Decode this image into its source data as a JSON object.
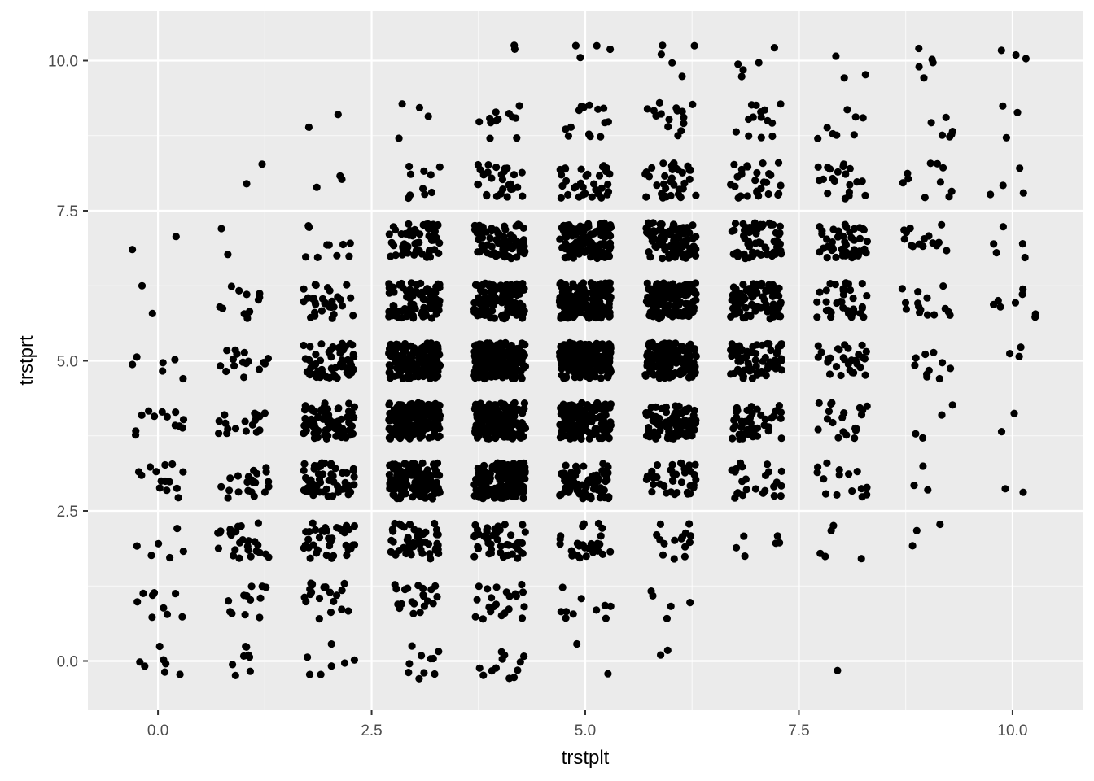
{
  "chart_data": {
    "type": "scatter",
    "title": "",
    "xlabel": "trstplt",
    "ylabel": "trstprt",
    "xlim": [
      -0.82,
      10.82
    ],
    "ylim": [
      -0.82,
      10.82
    ],
    "x_ticks": [
      {
        "value": 0,
        "label": "0.0"
      },
      {
        "value": 2.5,
        "label": "2.5"
      },
      {
        "value": 5,
        "label": "5.0"
      },
      {
        "value": 7.5,
        "label": "7.5"
      },
      {
        "value": 10,
        "label": "10.0"
      }
    ],
    "y_ticks": [
      {
        "value": 0,
        "label": "0.0"
      },
      {
        "value": 2.5,
        "label": "2.5"
      },
      {
        "value": 5,
        "label": "5.0"
      },
      {
        "value": 7.5,
        "label": "7.5"
      },
      {
        "value": 10,
        "label": "10.0"
      }
    ],
    "jitter": 0.3,
    "grid": true,
    "panel_background": "#ebebeb",
    "grid_color": "#ffffff",
    "point_color": "#000000",
    "cell_counts": [
      [
        7,
        8,
        7,
        10,
        12,
        2,
        2,
        0,
        1,
        0,
        0
      ],
      [
        9,
        12,
        20,
        22,
        22,
        10,
        5,
        0,
        0,
        0,
        0
      ],
      [
        6,
        26,
        40,
        50,
        45,
        30,
        15,
        6,
        5,
        3,
        0
      ],
      [
        14,
        22,
        55,
        120,
        140,
        80,
        40,
        25,
        15,
        3,
        2
      ],
      [
        12,
        18,
        70,
        180,
        200,
        140,
        90,
        45,
        20,
        4,
        2
      ],
      [
        6,
        16,
        60,
        170,
        210,
        220,
        150,
        70,
        30,
        10,
        3
      ],
      [
        2,
        12,
        30,
        90,
        150,
        170,
        130,
        90,
        35,
        15,
        8
      ],
      [
        2,
        2,
        10,
        55,
        75,
        110,
        100,
        65,
        45,
        15,
        5
      ],
      [
        0,
        2,
        3,
        10,
        28,
        35,
        35,
        28,
        20,
        10,
        4
      ],
      [
        0,
        0,
        2,
        4,
        12,
        14,
        16,
        14,
        8,
        6,
        3
      ],
      [
        0,
        0,
        0,
        0,
        2,
        4,
        5,
        5,
        3,
        5,
        3
      ]
    ]
  }
}
